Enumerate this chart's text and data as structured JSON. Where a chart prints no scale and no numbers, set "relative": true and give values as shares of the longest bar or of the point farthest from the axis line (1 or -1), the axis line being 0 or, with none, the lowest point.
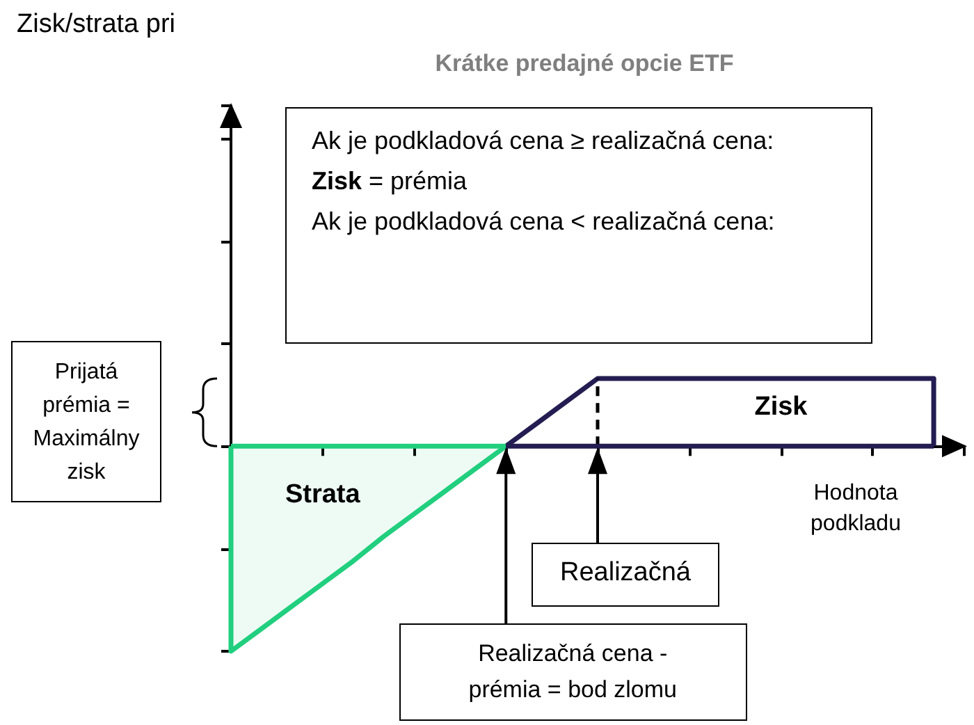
{
  "chart_data": {
    "type": "line",
    "relative": true,
    "title": "Krátke predajné opcie ETF",
    "xlabel": "Hodnota podkladu",
    "categories": [
      null,
      null,
      null,
      null,
      null,
      null,
      null,
      null,
      null,
      null,
      null,
      null,
      null,
      null,
      null,
      null,
      null,
      null,
      null,
      null,
      null,
      null,
      null,
      null,
      null
    ],
    "marker": "none",
    "series": [
      {
        "type": "area",
        "color": "#21cf7e",
        "values": [
          -1,
          -0.89,
          -0.78,
          -0.67,
          -0.56,
          -0.44,
          -0.33,
          -0.22,
          -0.11,
          0,
          null,
          null,
          null,
          null,
          null,
          null,
          null,
          null,
          null,
          null,
          null,
          null,
          null,
          null,
          null
        ]
      },
      {
        "type": "line",
        "color": "#231d52",
        "values": [
          null,
          null,
          null,
          null,
          null,
          null,
          null,
          null,
          null,
          0,
          0.11,
          0.22,
          0.33,
          0.33,
          0.33,
          0.33,
          0.33,
          0.33,
          0.33,
          0.33,
          0.33,
          0.33,
          0.33,
          0.33,
          null
        ]
      }
    ],
    "annotations": [
      "Ak je podkladová cena ≥ realizačná cena:",
      "Zisk = prémia",
      "Ak je podkladová cena < realizačná cena:",
      "Prijatá prémia = Maximálny zisk",
      "Strata",
      "Zisk",
      "Realizačná",
      "Realizačná cena - prémia = bod zlomu",
      "Zisk/strata pri"
    ]
  }
}
